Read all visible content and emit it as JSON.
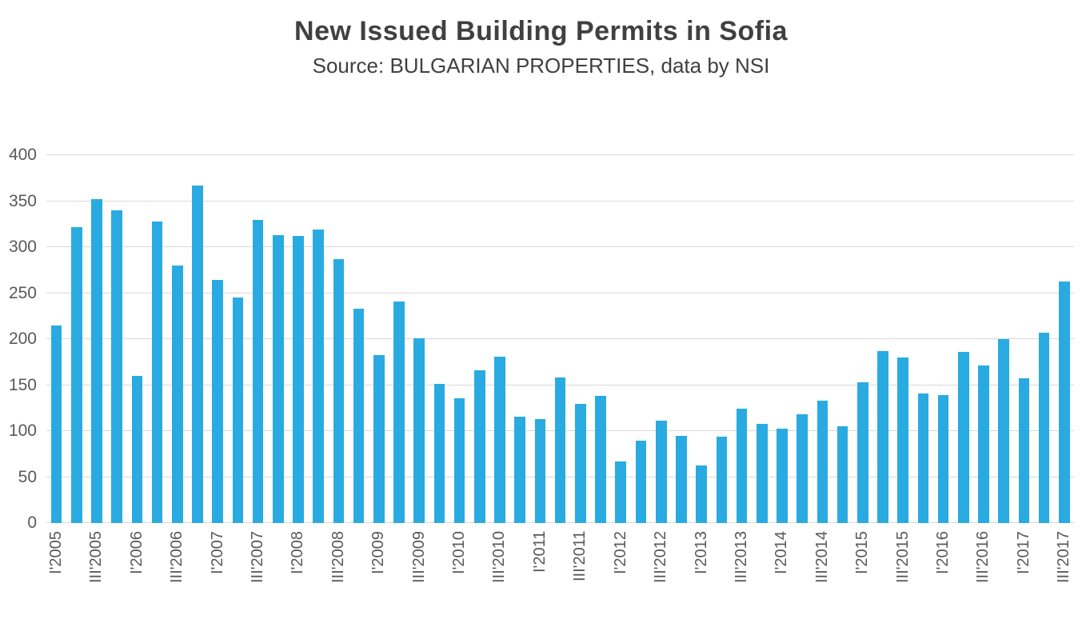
{
  "chart_data": {
    "type": "bar",
    "title": "New Issued Building Permits in Sofia",
    "subtitle": "Source: BULGARIAN PROPERTIES, data by NSI",
    "categories": [
      "I'2005",
      "",
      "III'2005",
      "",
      "I'2006",
      "",
      "III'2006",
      "",
      "I'2007",
      "",
      "III'2007",
      "",
      "I'2008",
      "",
      "III'2008",
      "",
      "I'2009",
      "",
      "III'2009",
      "",
      "I'2010",
      "",
      "III'2010",
      "",
      "I'2011",
      "",
      "III'2011",
      "",
      "I'2012",
      "",
      "III'2012",
      "",
      "I'2013",
      "",
      "III'2013",
      "",
      "I'2014",
      "",
      "III'2014",
      "",
      "I'2015",
      "",
      "III'2015",
      "",
      "I'2016",
      "",
      "III'2016",
      "",
      "I'2017",
      "",
      "III'2017"
    ],
    "values": [
      215,
      322,
      352,
      340,
      160,
      328,
      280,
      367,
      264,
      245,
      330,
      313,
      312,
      319,
      287,
      233,
      183,
      241,
      201,
      151,
      136,
      166,
      181,
      116,
      113,
      158,
      130,
      138,
      67,
      90,
      111,
      95,
      63,
      94,
      124,
      108,
      103,
      118,
      133,
      105,
      153,
      187,
      180,
      141,
      139,
      186,
      171,
      200,
      157,
      207,
      263
    ],
    "xlabel": "",
    "ylabel": "",
    "ylim": [
      0,
      400
    ],
    "yticks": [
      0,
      50,
      100,
      150,
      200,
      250,
      300,
      350,
      400
    ],
    "grid": true,
    "legend_position": "none",
    "colors": {
      "bar": "#29ABE2",
      "gridline": "#D9D9D9",
      "axis_text": "#595959",
      "title_text": "#404040",
      "background": "#FFFFFF"
    }
  }
}
